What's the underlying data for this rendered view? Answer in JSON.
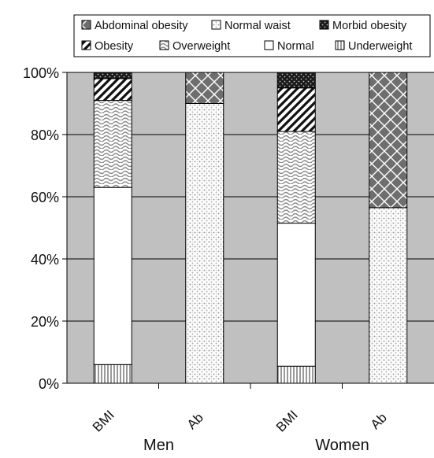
{
  "chart_data": {
    "type": "bar",
    "stacked": true,
    "y_axis": {
      "min": 0,
      "max": 100,
      "ticks": [
        "0%",
        "20%",
        "40%",
        "60%",
        "80%",
        "100%"
      ]
    },
    "grid": true,
    "legend_position": "top",
    "groups": [
      {
        "name": "Men",
        "bars": [
          "BMI",
          "Ab"
        ]
      },
      {
        "name": "Women",
        "bars": [
          "BMI",
          "Ab"
        ]
      }
    ],
    "legend": [
      {
        "key": "abdominal",
        "label": "Abdominal obesity"
      },
      {
        "key": "normalwaist",
        "label": "Normal waist"
      },
      {
        "key": "morbid",
        "label": "Morbid obesity"
      },
      {
        "key": "obesity",
        "label": "Obesity"
      },
      {
        "key": "overweight",
        "label": "Overweight"
      },
      {
        "key": "normal",
        "label": "Normal"
      },
      {
        "key": "underweight",
        "label": "Underweight"
      }
    ],
    "bars": [
      {
        "label": "BMI",
        "group": "Men",
        "segments": [
          {
            "key": "underweight",
            "value": 6
          },
          {
            "key": "normal",
            "value": 57
          },
          {
            "key": "overweight",
            "value": 28
          },
          {
            "key": "obesity",
            "value": 7
          },
          {
            "key": "morbid",
            "value": 2
          }
        ]
      },
      {
        "label": "Ab",
        "group": "Men",
        "segments": [
          {
            "key": "normalwaist",
            "value": 90
          },
          {
            "key": "abdominal",
            "value": 10
          }
        ]
      },
      {
        "label": "BMI",
        "group": "Women",
        "segments": [
          {
            "key": "underweight",
            "value": 5.5
          },
          {
            "key": "normal",
            "value": 46
          },
          {
            "key": "overweight",
            "value": 29.5
          },
          {
            "key": "obesity",
            "value": 14
          },
          {
            "key": "morbid",
            "value": 5
          }
        ]
      },
      {
        "label": "Ab",
        "group": "Women",
        "segments": [
          {
            "key": "normalwaist",
            "value": 56.5
          },
          {
            "key": "abdominal",
            "value": 43.5
          }
        ]
      }
    ]
  }
}
